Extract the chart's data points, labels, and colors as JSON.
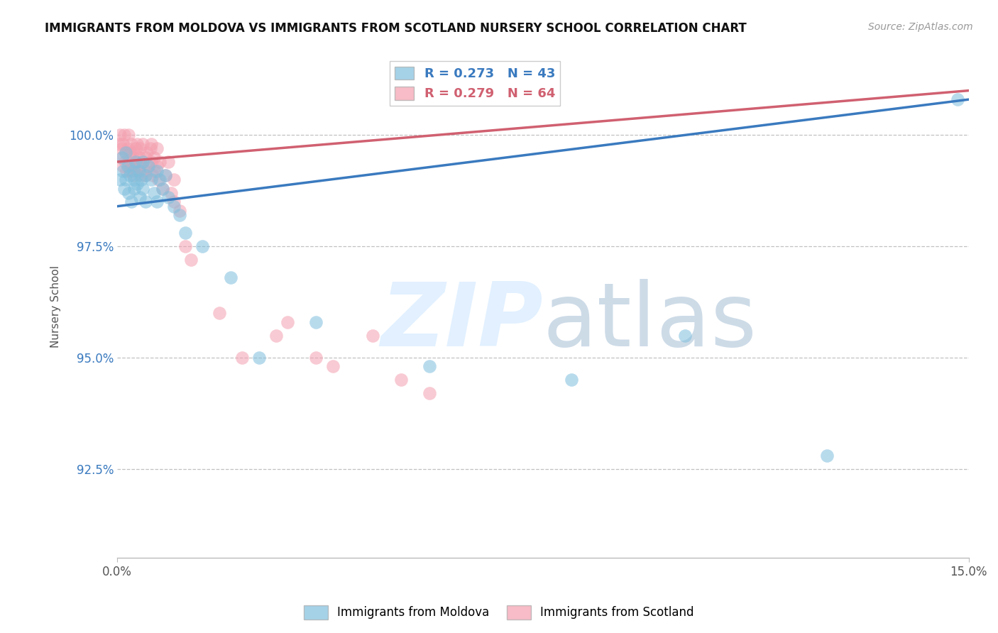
{
  "title": "IMMIGRANTS FROM MOLDOVA VS IMMIGRANTS FROM SCOTLAND NURSERY SCHOOL CORRELATION CHART",
  "source": "Source: ZipAtlas.com",
  "ylabel": "Nursery School",
  "xlim": [
    0.0,
    15.0
  ],
  "ylim": [
    90.5,
    101.8
  ],
  "yticks": [
    92.5,
    95.0,
    97.5,
    100.0
  ],
  "ytick_labels": [
    "92.5%",
    "95.0%",
    "97.5%",
    "100.0%"
  ],
  "xtick_labels": [
    "0.0%",
    "15.0%"
  ],
  "legend_blue_r": "R = 0.273",
  "legend_blue_n": "N = 43",
  "legend_pink_r": "R = 0.279",
  "legend_pink_n": "N = 64",
  "blue_color": "#7fbfdd",
  "pink_color": "#f4a0b0",
  "blue_line_color": "#3a7abf",
  "pink_line_color": "#d06070",
  "blue_line_x0": 0.0,
  "blue_line_y0": 98.4,
  "blue_line_x1": 15.0,
  "blue_line_y1": 100.8,
  "pink_line_x0": 0.0,
  "pink_line_y0": 99.4,
  "pink_line_x1": 15.0,
  "pink_line_y1": 101.0,
  "blue_x": [
    0.05,
    0.08,
    0.1,
    0.12,
    0.15,
    0.15,
    0.18,
    0.2,
    0.22,
    0.25,
    0.28,
    0.3,
    0.3,
    0.32,
    0.35,
    0.38,
    0.4,
    0.42,
    0.45,
    0.45,
    0.5,
    0.5,
    0.55,
    0.6,
    0.65,
    0.7,
    0.7,
    0.75,
    0.8,
    0.85,
    0.9,
    1.0,
    1.1,
    1.2,
    1.5,
    2.0,
    2.5,
    3.5,
    5.5,
    8.0,
    10.0,
    12.5,
    14.8
  ],
  "blue_y": [
    99.0,
    99.5,
    99.2,
    98.8,
    99.6,
    99.0,
    99.3,
    98.7,
    99.1,
    98.5,
    99.2,
    98.8,
    99.0,
    99.4,
    98.9,
    99.2,
    98.6,
    99.0,
    99.4,
    98.8,
    99.1,
    98.5,
    99.3,
    99.0,
    98.7,
    99.2,
    98.5,
    99.0,
    98.8,
    99.1,
    98.6,
    98.4,
    98.2,
    97.8,
    97.5,
    96.8,
    95.0,
    95.8,
    94.8,
    94.5,
    95.5,
    92.8,
    100.8
  ],
  "pink_x": [
    0.03,
    0.05,
    0.07,
    0.08,
    0.1,
    0.1,
    0.12,
    0.13,
    0.15,
    0.16,
    0.18,
    0.2,
    0.2,
    0.22,
    0.22,
    0.25,
    0.25,
    0.27,
    0.28,
    0.3,
    0.3,
    0.32,
    0.33,
    0.35,
    0.35,
    0.38,
    0.4,
    0.4,
    0.42,
    0.45,
    0.45,
    0.48,
    0.5,
    0.5,
    0.52,
    0.55,
    0.58,
    0.6,
    0.6,
    0.62,
    0.65,
    0.65,
    0.7,
    0.7,
    0.72,
    0.75,
    0.8,
    0.85,
    0.9,
    0.95,
    1.0,
    1.0,
    1.1,
    1.2,
    1.3,
    1.8,
    2.2,
    2.8,
    3.0,
    3.5,
    3.8,
    4.5,
    5.0,
    5.5
  ],
  "pink_y": [
    99.8,
    100.0,
    99.5,
    99.7,
    99.3,
    99.8,
    100.0,
    99.4,
    99.6,
    99.2,
    99.7,
    99.4,
    100.0,
    99.2,
    99.6,
    99.3,
    99.8,
    99.5,
    99.1,
    99.6,
    99.3,
    99.7,
    99.4,
    99.8,
    99.2,
    99.5,
    99.3,
    99.7,
    99.1,
    99.4,
    99.8,
    99.2,
    99.5,
    99.1,
    99.6,
    99.3,
    99.7,
    99.4,
    99.8,
    99.1,
    99.5,
    99.2,
    99.3,
    99.7,
    99.0,
    99.4,
    98.8,
    99.1,
    99.4,
    98.7,
    98.5,
    99.0,
    98.3,
    97.5,
    97.2,
    96.0,
    95.0,
    95.5,
    95.8,
    95.0,
    94.8,
    95.5,
    94.5,
    94.2
  ]
}
